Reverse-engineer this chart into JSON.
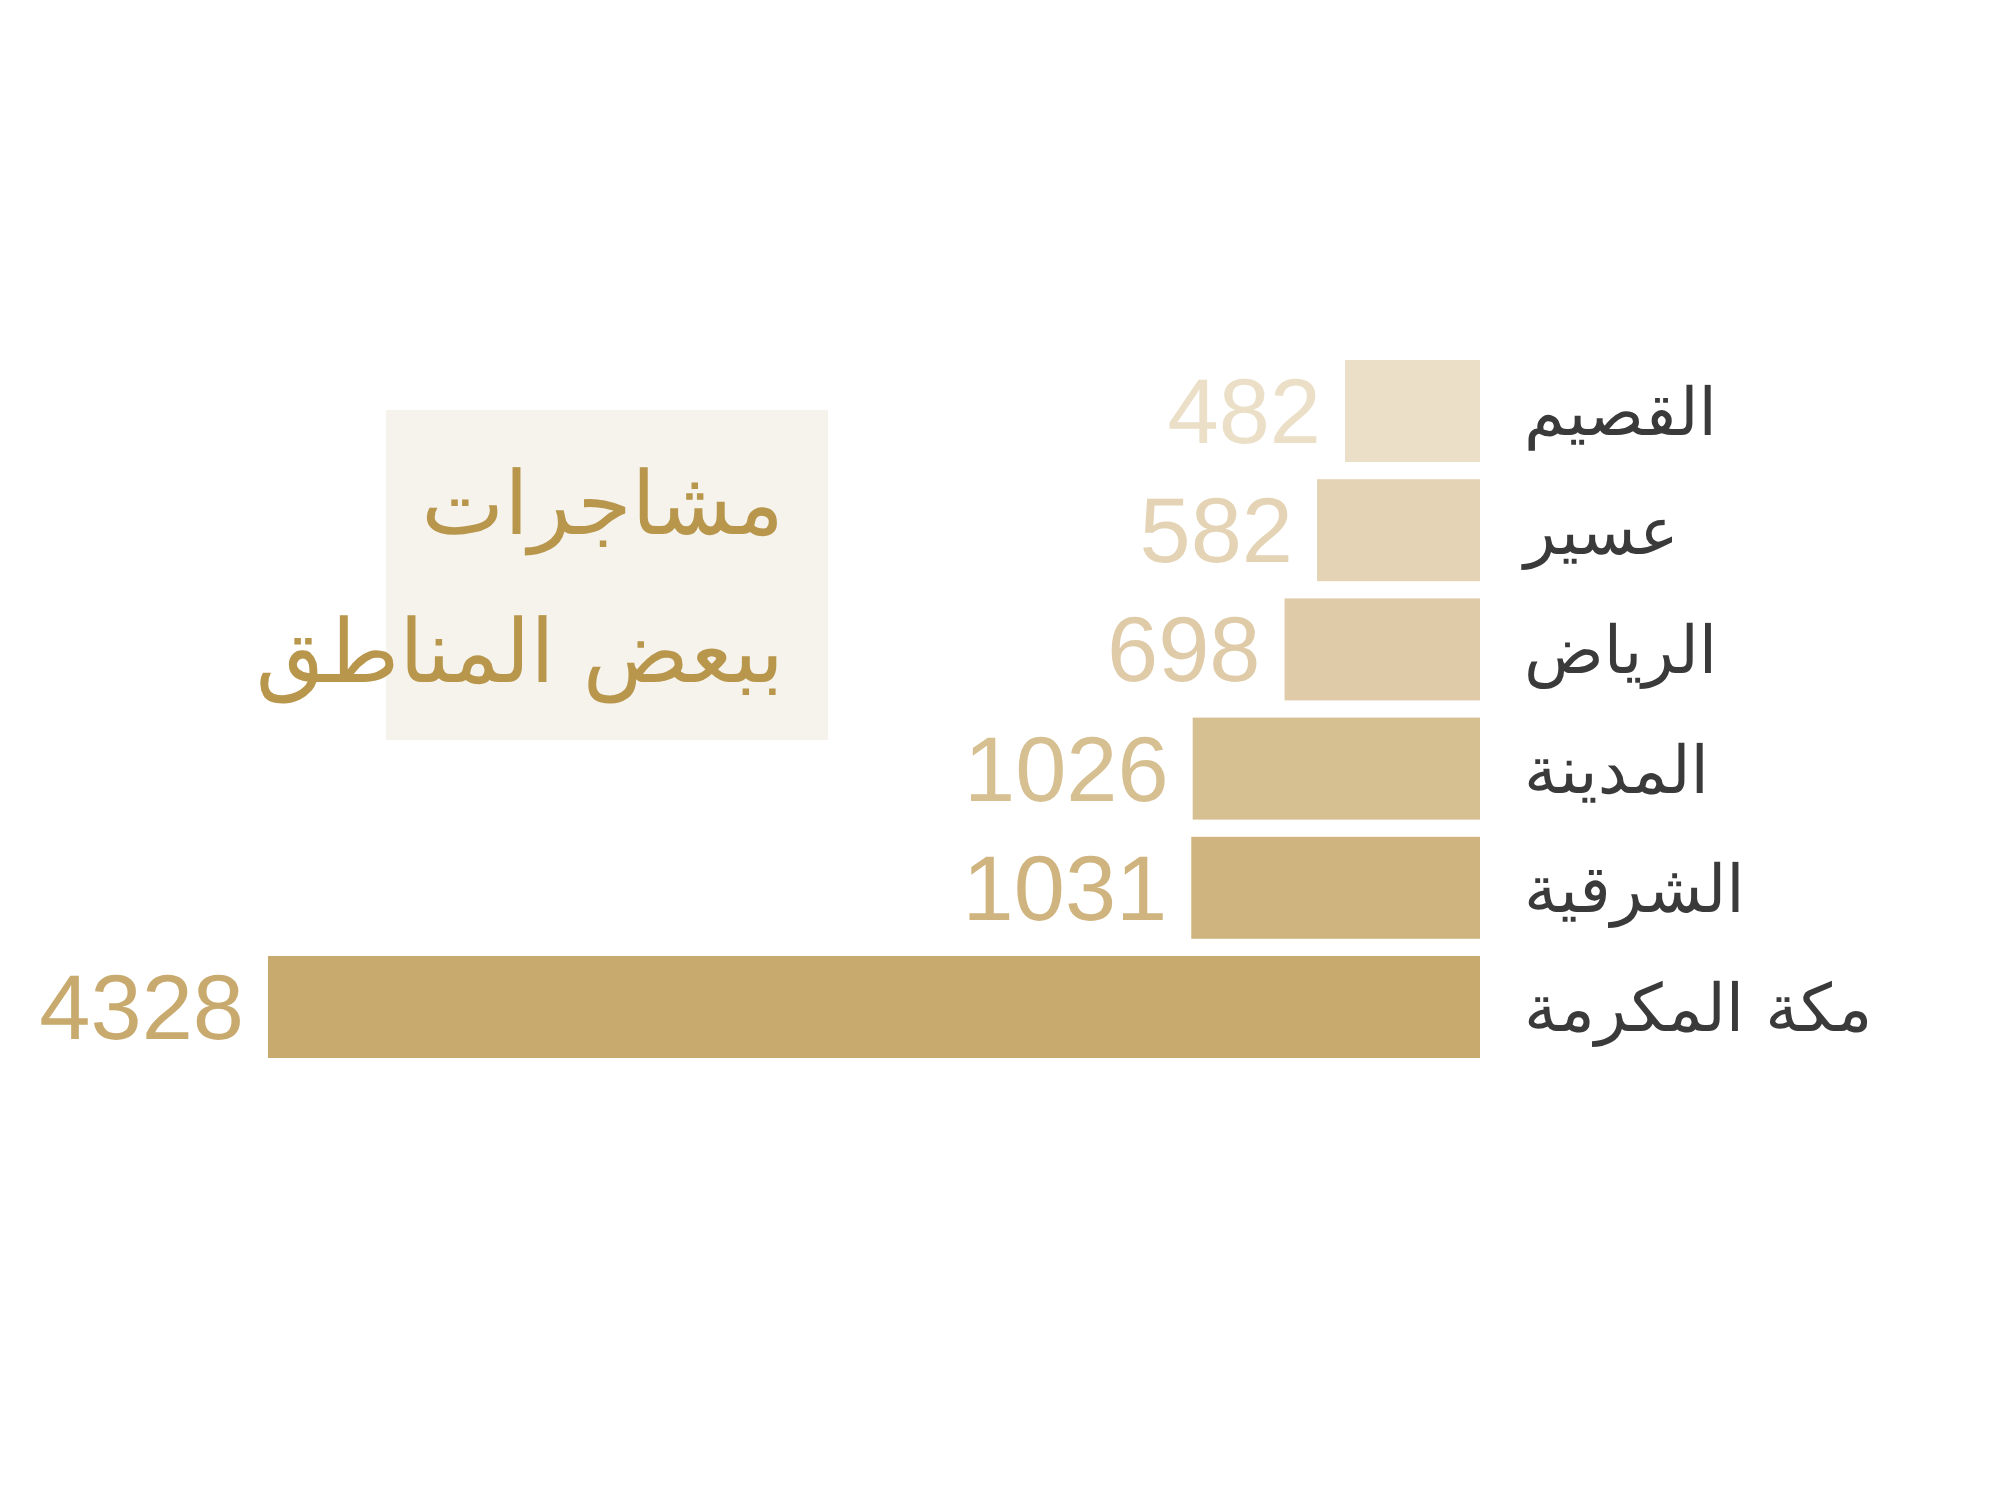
{
  "chart_data": {
    "type": "bar",
    "orientation": "horizontal",
    "title": "مشاجرات ببعض المناطق",
    "categories": [
      "القصيم",
      "عسير",
      "الرياض",
      "المدينة",
      "الشرقية",
      "مكة المكرمة"
    ],
    "values": [
      482,
      582,
      698,
      1026,
      1031,
      4328
    ],
    "colors": [
      "#ebdfc8",
      "#e4d4b5",
      "#dfcba8",
      "#d6bf90",
      "#cfb47f",
      "#c8aa6f"
    ],
    "data_labels": true
  }
}
